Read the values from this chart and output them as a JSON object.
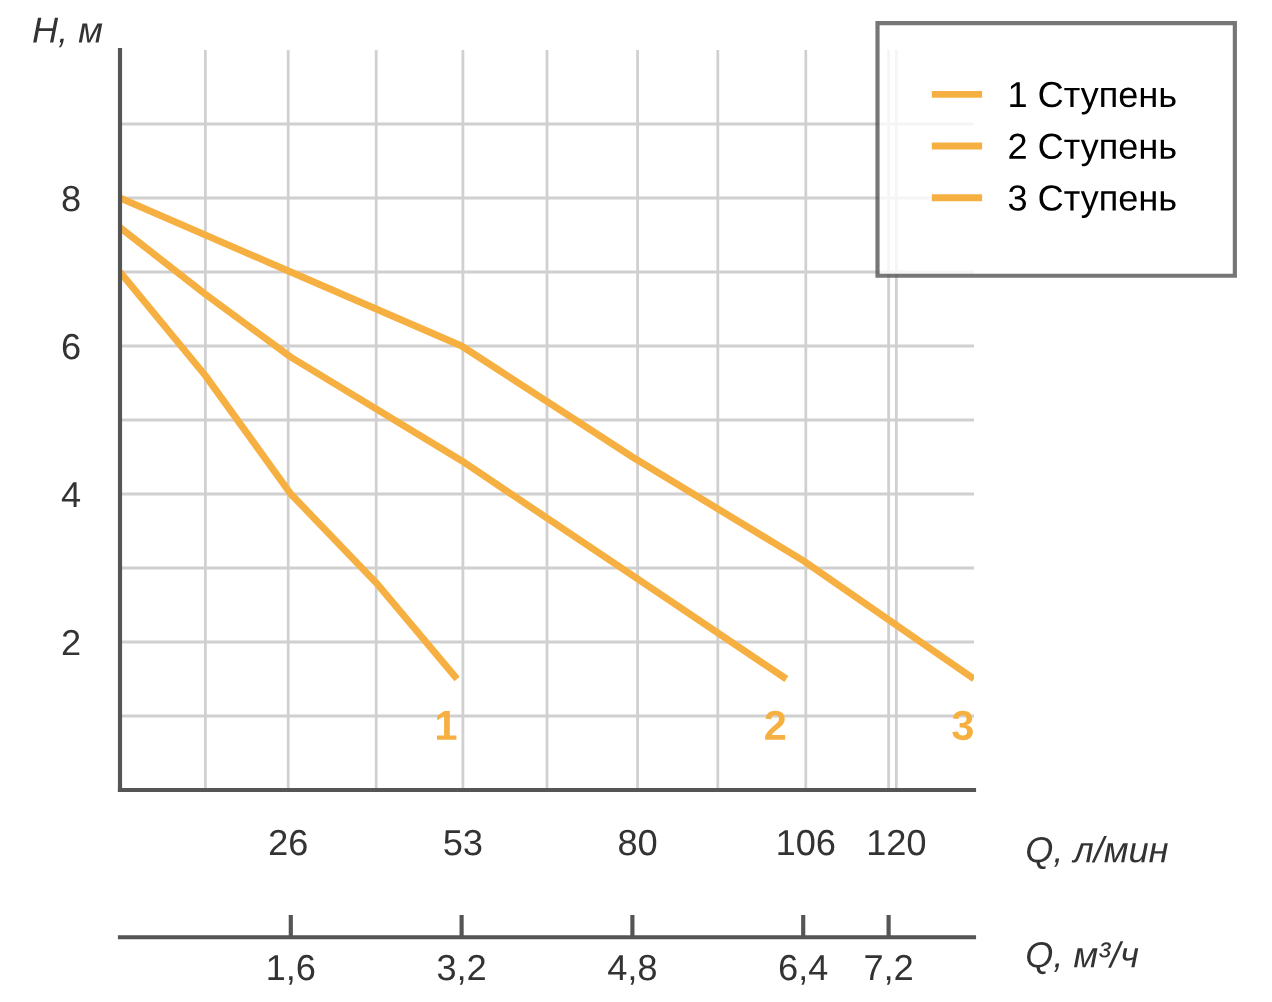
{
  "chart_data": {
    "type": "line",
    "xlabel": "Q, л/мин",
    "ylabel": "H, м",
    "x2label": "Q, м³/ч",
    "series": [
      {
        "name": "1 Ступень",
        "color": "#f6b042",
        "x": [
          0,
          13.2,
          26.4,
          39.6,
          52.1
        ],
        "values": [
          7.0,
          5.6,
          4.0,
          2.8,
          1.5
        ]
      },
      {
        "name": "2 Ступень",
        "color": "#f6b042",
        "x": [
          0,
          13.2,
          26.4,
          52.8,
          79.2,
          103
        ],
        "values": [
          7.6,
          6.7,
          5.85,
          4.45,
          2.9,
          1.5
        ]
      },
      {
        "name": "3 Ступень",
        "color": "#f6b042",
        "x": [
          0,
          26.4,
          52.8,
          79.2,
          105.6,
          132
        ],
        "values": [
          8.0,
          7.0,
          6.0,
          4.5,
          3.1,
          1.5
        ]
      }
    ],
    "annotations": [
      "1",
      "2",
      "3"
    ],
    "xlim": [
      0,
      132
    ],
    "ylim": [
      0,
      10
    ],
    "xticks": [
      {
        "value": 13.2,
        "label": null
      },
      26,
      {
        "value": 39.6,
        "label": null
      },
      53,
      {
        "value": 66,
        "label": null
      },
      80,
      {
        "value": 92.4,
        "label": null
      },
      106,
      {
        "value": 118.8,
        "label": null
      },
      120
    ],
    "yticks": [
      {
        "value": 1,
        "label": null
      },
      2,
      {
        "value": 3,
        "label": null
      },
      4,
      {
        "value": 5,
        "label": null
      },
      6,
      {
        "value": 7,
        "label": null
      },
      8,
      {
        "value": 9,
        "label": null
      }
    ],
    "x2lim": [
      0,
      8
    ],
    "x2ticks": [
      {
        "value": 1.6,
        "label": "1,6"
      },
      {
        "value": 3.2,
        "label": "3,2"
      },
      {
        "value": 4.8,
        "label": "4,8"
      },
      {
        "value": 6.4,
        "label": "6,4"
      },
      {
        "value": 7.2,
        "label": "7,2"
      }
    ],
    "grid": true,
    "legend": "top right",
    "marker": "none",
    "line_style": "solid"
  }
}
